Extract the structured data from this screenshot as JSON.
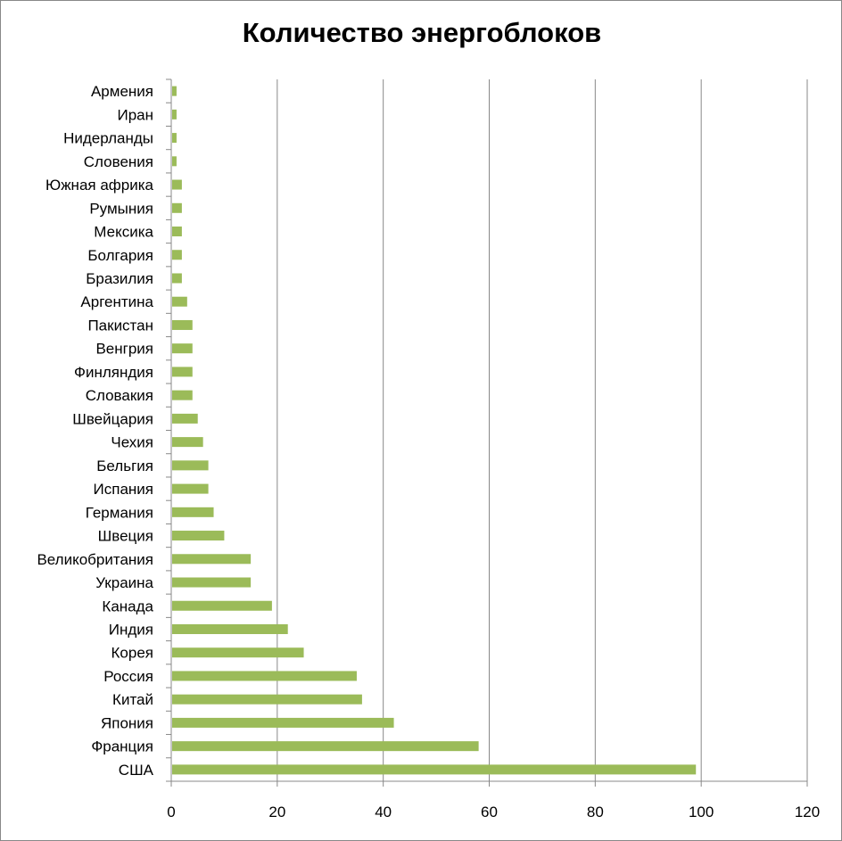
{
  "chart_data": {
    "type": "bar",
    "orientation": "horizontal",
    "title": "Количество энергоблоков",
    "categories": [
      "Армения",
      "Иран",
      "Нидерланды",
      "Словения",
      "Южная африка",
      "Румыния",
      "Мексика",
      "Болгария",
      "Бразилия",
      "Аргентина",
      "Пакистан",
      "Венгрия",
      "Финляндия",
      "Словакия",
      "Швейцария",
      "Чехия",
      "Бельгия",
      "Испания",
      "Германия",
      "Швеция",
      "Великобритания",
      "Украина",
      "Канада",
      "Индия",
      "Корея",
      "Россия",
      "Китай",
      "Япония",
      "Франция",
      "США"
    ],
    "values": [
      1,
      1,
      1,
      1,
      2,
      2,
      2,
      2,
      2,
      3,
      4,
      4,
      4,
      4,
      5,
      6,
      7,
      7,
      8,
      10,
      15,
      15,
      19,
      22,
      25,
      35,
      36,
      42,
      58,
      99
    ],
    "xlim": [
      0,
      120
    ],
    "xticks": [
      0,
      20,
      40,
      60,
      80,
      100,
      120
    ],
    "grid": true,
    "legend": "none",
    "bar_color": "#9BBB59",
    "grid_color": "#888888"
  }
}
